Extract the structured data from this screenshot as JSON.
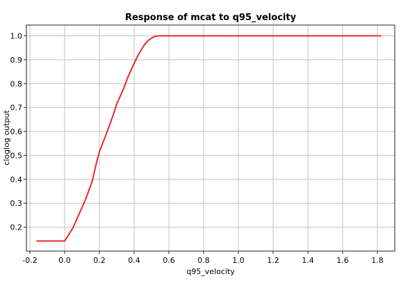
{
  "chart_data": {
    "type": "line",
    "title": "Response of mcat to q95_velocity",
    "xlabel": "q95_velocity",
    "ylabel": "cloglog output",
    "xlim": [
      -0.22,
      1.9
    ],
    "ylim": [
      0.1,
      1.045
    ],
    "xticks": [
      "-0.2",
      "0.0",
      "0.2",
      "0.4",
      "0.6",
      "0.8",
      "1.0",
      "1.2",
      "1.4",
      "1.6",
      "1.8"
    ],
    "yticks": [
      "0.2",
      "0.3",
      "0.4",
      "0.5",
      "0.6",
      "0.7",
      "0.8",
      "0.9",
      "1.0"
    ],
    "grid": true,
    "legend": "none",
    "series": [
      {
        "color": "#e8282d",
        "x": [
          -0.16,
          -0.12,
          -0.08,
          -0.04,
          0.0,
          0.02,
          0.05,
          0.08,
          0.12,
          0.16,
          0.18,
          0.2,
          0.24,
          0.28,
          0.3,
          0.34,
          0.36,
          0.39,
          0.42,
          0.44,
          0.46,
          0.48,
          0.5,
          0.52,
          0.55,
          0.57,
          0.6,
          0.8,
          1.0,
          1.2,
          1.4,
          1.6,
          1.82
        ],
        "y": [
          0.142,
          0.142,
          0.142,
          0.142,
          0.142,
          0.165,
          0.2,
          0.25,
          0.315,
          0.395,
          0.46,
          0.515,
          0.59,
          0.67,
          0.715,
          0.78,
          0.82,
          0.87,
          0.915,
          0.94,
          0.963,
          0.98,
          0.99,
          0.998,
          1.0,
          1.0,
          1.0,
          1.0,
          1.0,
          1.0,
          1.0,
          1.0,
          1.0
        ]
      }
    ]
  }
}
